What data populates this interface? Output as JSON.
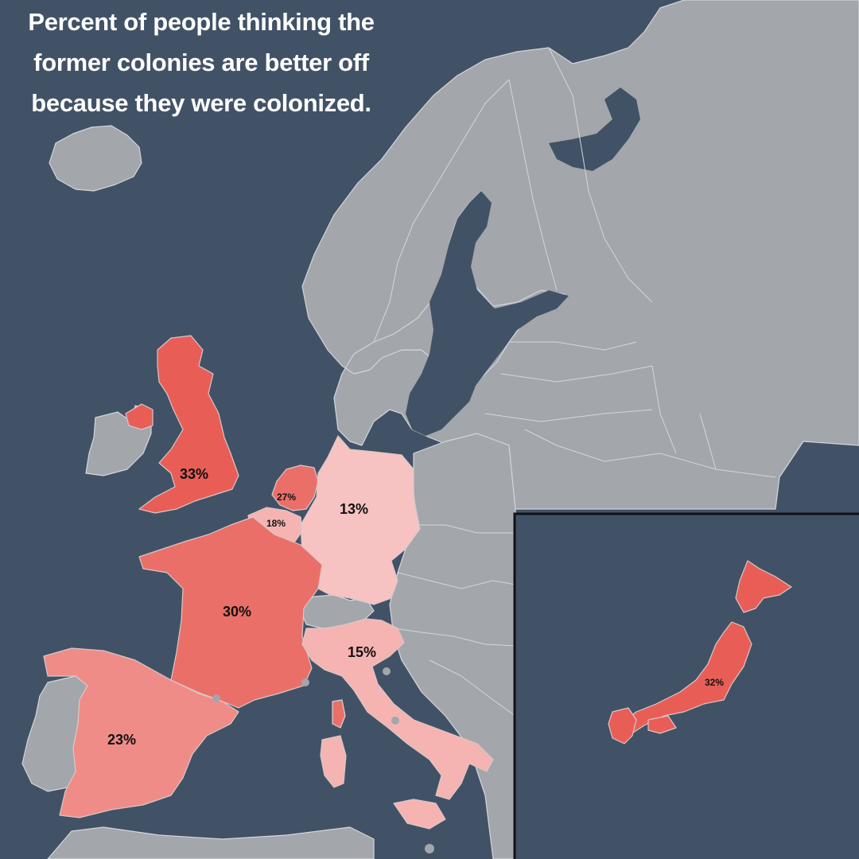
{
  "title": "Percent of people thinking the former colonies are better off because they were colonized.",
  "scale_colors": {
    "low": "#f6c3c2",
    "mid_low": "#f5b4b1",
    "mid": "#f08c88",
    "high": "#eb6f69",
    "top": "#e85e57"
  },
  "background_sea": "#415266",
  "non_data_land": "#a3a6ab",
  "countries": [
    {
      "id": "uk",
      "label": "33%",
      "value": 33
    },
    {
      "id": "netherlands",
      "label": "27%",
      "value": 27
    },
    {
      "id": "belgium",
      "label": "18%",
      "value": 18
    },
    {
      "id": "germany",
      "label": "13%",
      "value": 13
    },
    {
      "id": "france",
      "label": "30%",
      "value": 30
    },
    {
      "id": "italy",
      "label": "15%",
      "value": 15
    },
    {
      "id": "spain",
      "label": "23%",
      "value": 23
    },
    {
      "id": "japan",
      "label": "32%",
      "value": 32
    }
  ]
}
